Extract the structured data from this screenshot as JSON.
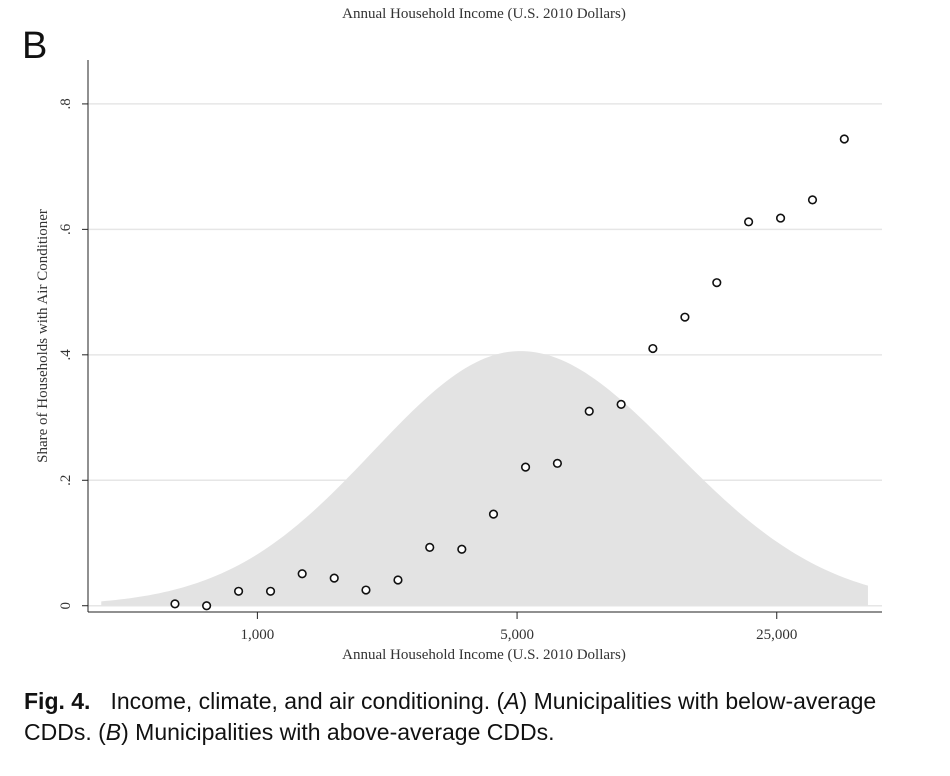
{
  "top_cropped_label": "Annual Household Income (U.S. 2010 Dollars)",
  "panel_letter": "B",
  "chart_data": {
    "type": "scatter",
    "xlabel": "Annual Household Income (U.S. 2010 Dollars)",
    "ylabel": "Share of Households with Air Conditioner",
    "x_scale": "log",
    "x_ticks": [
      1000,
      5000,
      25000
    ],
    "x_tick_labels": [
      "1,000",
      "5,000",
      "25,000"
    ],
    "xlim": [
      350,
      48000
    ],
    "y_ticks": [
      0,
      0.2,
      0.4,
      0.6,
      0.8
    ],
    "y_tick_labels": [
      "0",
      ".2",
      ".4",
      ".6",
      ".8"
    ],
    "ylim": [
      -0.01,
      0.87
    ],
    "grid": true,
    "series": [
      {
        "marker": "hollow-circle",
        "color": "#111111",
        "points": [
          {
            "x": 600,
            "y": 0.003
          },
          {
            "x": 730,
            "y": 0.0
          },
          {
            "x": 890,
            "y": 0.023
          },
          {
            "x": 1085,
            "y": 0.023
          },
          {
            "x": 1320,
            "y": 0.051
          },
          {
            "x": 1610,
            "y": 0.044
          },
          {
            "x": 1960,
            "y": 0.025
          },
          {
            "x": 2390,
            "y": 0.041
          },
          {
            "x": 2910,
            "y": 0.093
          },
          {
            "x": 3550,
            "y": 0.09
          },
          {
            "x": 4320,
            "y": 0.146
          },
          {
            "x": 5270,
            "y": 0.221
          },
          {
            "x": 6420,
            "y": 0.227
          },
          {
            "x": 7820,
            "y": 0.31
          },
          {
            "x": 9530,
            "y": 0.321
          },
          {
            "x": 11600,
            "y": 0.41
          },
          {
            "x": 14150,
            "y": 0.46
          },
          {
            "x": 17240,
            "y": 0.515
          },
          {
            "x": 21000,
            "y": 0.612
          },
          {
            "x": 25600,
            "y": 0.618
          },
          {
            "x": 31200,
            "y": 0.647
          },
          {
            "x": 38000,
            "y": 0.744
          }
        ]
      }
    ],
    "density": {
      "type": "area",
      "color": "#e3e3e3",
      "x_start": 380,
      "x_end": 44000,
      "peak_x": 5100,
      "peak_y": 0.406,
      "start_y": 0.007,
      "end_y": 0.032
    }
  },
  "caption": {
    "label": "Fig. 4.",
    "text_1": "Income, climate, and air conditioning. (",
    "panel_a": "A",
    "text_2": ") Municipalities with below-average CDDs. (",
    "panel_b": "B",
    "text_3": ") Municipalities with above-average CDDs."
  }
}
